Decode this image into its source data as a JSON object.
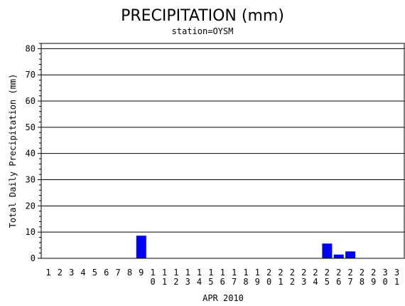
{
  "chart_data": {
    "type": "bar",
    "title": "PRECIPITATION (mm)",
    "subtitle": "station=OYSM",
    "xlabel": "APR 2010",
    "ylabel": "Total Daily Precipitation (mm)",
    "ylim": [
      0,
      82
    ],
    "yticks": [
      0,
      10,
      20,
      30,
      40,
      50,
      60,
      70,
      80
    ],
    "grid": true,
    "bar_color": "#0000ff",
    "categories": [
      "1",
      "2",
      "3",
      "4",
      "5",
      "6",
      "7",
      "8",
      "9",
      "10",
      "11",
      "12",
      "13",
      "14",
      "15",
      "16",
      "17",
      "18",
      "19",
      "20",
      "21",
      "22",
      "23",
      "24",
      "25",
      "26",
      "27",
      "28",
      "29",
      "30",
      "31"
    ],
    "values": [
      0,
      0,
      0,
      0,
      0,
      0,
      0,
      0,
      8.5,
      0,
      0,
      0,
      0,
      0,
      0,
      0,
      0,
      0,
      0,
      0,
      0,
      0,
      0,
      0,
      5.5,
      1.3,
      2.5,
      0,
      0,
      0,
      0
    ]
  }
}
